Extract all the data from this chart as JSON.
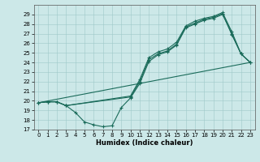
{
  "xlabel": "Humidex (Indice chaleur)",
  "bg_color": "#cce8e8",
  "line_color": "#1a6b5a",
  "xlim": [
    -0.5,
    23.5
  ],
  "ylim": [
    17,
    30
  ],
  "yticks": [
    17,
    18,
    19,
    20,
    21,
    22,
    23,
    24,
    25,
    26,
    27,
    28,
    29
  ],
  "xticks": [
    0,
    1,
    2,
    3,
    4,
    5,
    6,
    7,
    8,
    9,
    10,
    11,
    12,
    13,
    14,
    15,
    16,
    17,
    18,
    19,
    20,
    21,
    22,
    23
  ],
  "line1_x": [
    0,
    1,
    2,
    3,
    4,
    5,
    6,
    7,
    8,
    9,
    10,
    11,
    12,
    13,
    14,
    15,
    16,
    17,
    18,
    19,
    20,
    21,
    22,
    23
  ],
  "line1_y": [
    19.8,
    19.9,
    19.9,
    19.5,
    18.8,
    17.8,
    17.5,
    17.3,
    17.4,
    19.3,
    20.3,
    21.8,
    24.1,
    24.8,
    25.1,
    25.8,
    27.6,
    28.0,
    28.4,
    28.6,
    29.0,
    27.0,
    24.9,
    24.0
  ],
  "line2_x": [
    0,
    1,
    2,
    3,
    10,
    11,
    12,
    13,
    14,
    15,
    16,
    17,
    18,
    19,
    20,
    21,
    22,
    23
  ],
  "line2_y": [
    19.8,
    19.9,
    19.9,
    19.5,
    20.5,
    22.2,
    24.5,
    25.1,
    25.4,
    26.1,
    27.8,
    28.3,
    28.6,
    28.8,
    29.2,
    27.2,
    24.9,
    24.0
  ],
  "line3_x": [
    0,
    1,
    2,
    3,
    10,
    11,
    12,
    13,
    14,
    15,
    16,
    17,
    18,
    19,
    20,
    21,
    22,
    23
  ],
  "line3_y": [
    19.8,
    19.9,
    19.9,
    19.5,
    20.4,
    22.0,
    24.3,
    24.9,
    25.2,
    25.9,
    27.7,
    28.1,
    28.5,
    28.7,
    29.1,
    26.9,
    24.9,
    24.0
  ],
  "line4_x": [
    0,
    23
  ],
  "line4_y": [
    19.8,
    24.0
  ]
}
